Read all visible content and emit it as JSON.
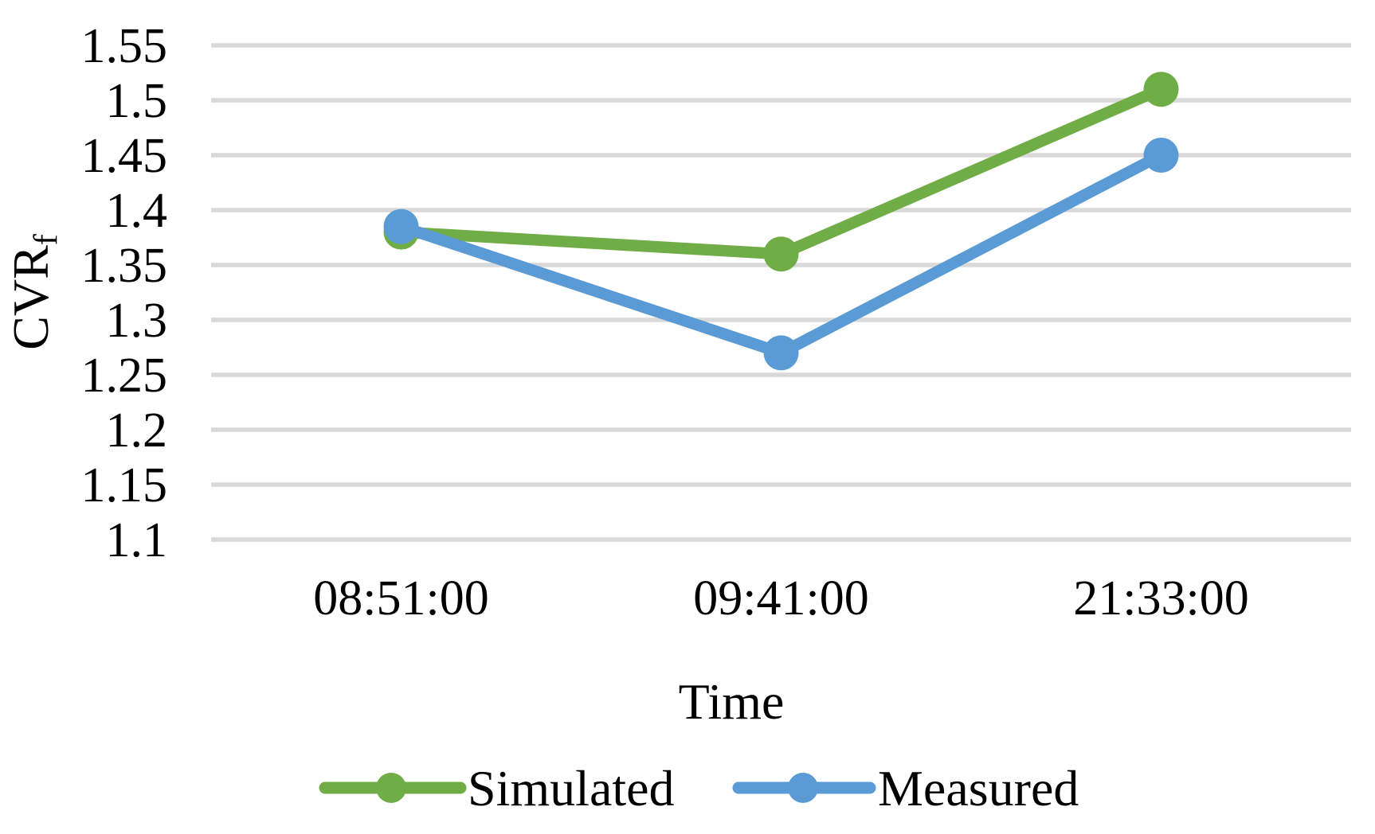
{
  "chart_data": {
    "type": "line",
    "title": "",
    "xlabel": "Time",
    "ylabel": "CVR",
    "ylabel_subscript": "f",
    "categories": [
      "08:51:00",
      "09:41:00",
      "21:33:00"
    ],
    "series": [
      {
        "name": "Simulated",
        "color": "#70AD47",
        "values": [
          1.38,
          1.36,
          1.51
        ]
      },
      {
        "name": "Measured",
        "color": "#5B9BD5",
        "values": [
          1.385,
          1.27,
          1.45
        ]
      }
    ],
    "ylim": [
      1.1,
      1.55
    ],
    "ytick_step": 0.05,
    "yticks": [
      "1.55",
      "1.5",
      "1.45",
      "1.4",
      "1.35",
      "1.3",
      "1.25",
      "1.2",
      "1.15",
      "1.1"
    ],
    "grid": true,
    "gridline_color": "#D9D9D9",
    "text_color": "#000000",
    "legend_position": "bottom",
    "marker": "circle"
  }
}
